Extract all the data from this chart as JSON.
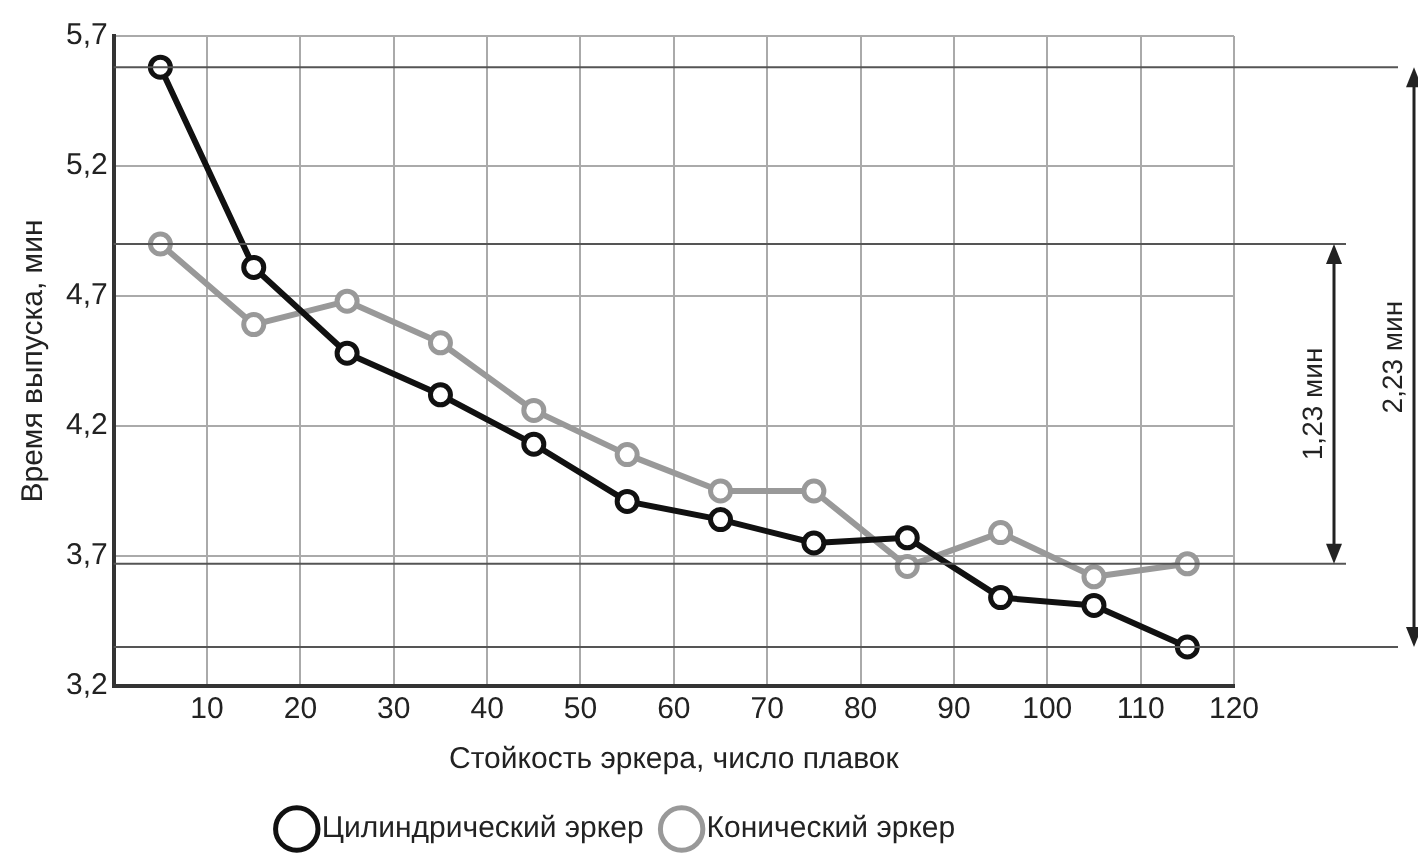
{
  "chart_data": {
    "type": "line",
    "xlabel": "Стойкость эркера, число плавок",
    "ylabel": "Время выпуска, мин",
    "x": [
      5,
      15,
      25,
      35,
      45,
      55,
      65,
      75,
      85,
      95,
      105,
      115
    ],
    "series": [
      {
        "name": "Цилиндрический эркер",
        "color": "#111111",
        "values": [
          5.58,
          4.81,
          4.48,
          4.32,
          4.13,
          3.91,
          3.84,
          3.75,
          3.77,
          3.54,
          3.51,
          3.35
        ]
      },
      {
        "name": "Конический эркер",
        "color": "#999999",
        "values": [
          4.9,
          4.59,
          4.68,
          4.52,
          4.26,
          4.09,
          3.95,
          3.95,
          3.66,
          3.79,
          3.62,
          3.67
        ]
      }
    ],
    "xlim": [
      0,
      120
    ],
    "xticks": [
      10,
      20,
      30,
      40,
      50,
      60,
      70,
      80,
      90,
      100,
      110,
      120
    ],
    "ylim": [
      3.2,
      5.7
    ],
    "yticks": [
      {
        "value": 3.2,
        "label": "3,2"
      },
      {
        "value": 3.7,
        "label": "3,7"
      },
      {
        "value": 4.2,
        "label": "4,2"
      },
      {
        "value": 4.7,
        "label": "4,7"
      },
      {
        "value": 5.2,
        "label": "5,2"
      },
      {
        "value": 5.7,
        "label": "5,7"
      }
    ],
    "ref_lines": [
      {
        "axis": "y",
        "value": 5.58
      },
      {
        "axis": "y",
        "value": 4.9
      },
      {
        "axis": "y",
        "value": 3.67
      },
      {
        "axis": "y",
        "value": 3.35
      }
    ],
    "annotations": [
      "1,23 мин",
      "2,23 мин"
    ],
    "grid": true,
    "legend": "bottom",
    "marker": "circle",
    "line_style": "solid"
  }
}
